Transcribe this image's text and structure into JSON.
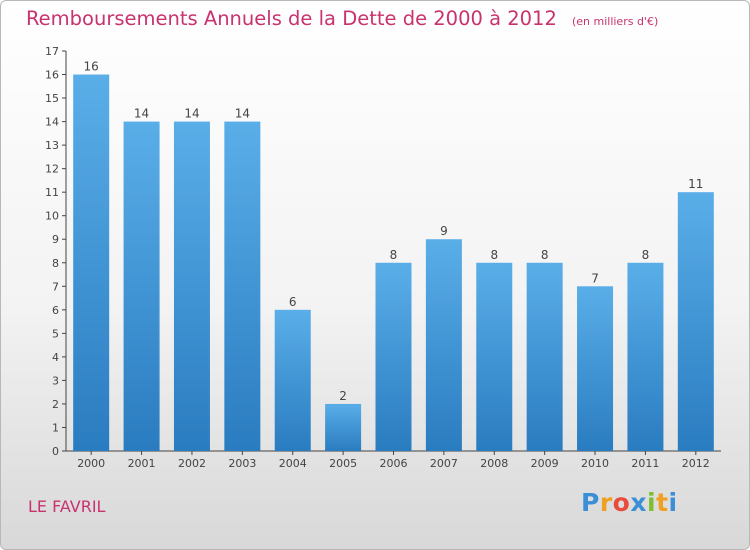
{
  "chart_data": {
    "type": "bar",
    "title": "Remboursements Annuels de la Dette de 2000 à 2012",
    "subtitle": "(en milliers d'€)",
    "categories": [
      "2000",
      "2001",
      "2002",
      "2003",
      "2004",
      "2005",
      "2006",
      "2007",
      "2008",
      "2009",
      "2010",
      "2011",
      "2012"
    ],
    "values": [
      16,
      14,
      14,
      14,
      6,
      2,
      8,
      9,
      8,
      8,
      7,
      8,
      11
    ],
    "ylim": [
      0,
      17
    ],
    "yticks": [
      0,
      1,
      2,
      3,
      4,
      5,
      6,
      7,
      8,
      9,
      10,
      11,
      12,
      13,
      14,
      15,
      16,
      17
    ],
    "grid": false,
    "data_labels": true,
    "bar_color_top": "#5aaee8",
    "bar_color_bottom": "#2a7cc0"
  },
  "commune": "LE FAVRIL",
  "brand": {
    "letters": [
      "P",
      "r",
      "o",
      "x",
      "i",
      "t",
      "i"
    ],
    "colors": [
      "#3b8fd6",
      "#f0a020",
      "#e84c3d",
      "#3b8fd6",
      "#7dbf2f",
      "#f0a020",
      "#3b8fd6"
    ]
  },
  "colors": {
    "accent": "#c8326e",
    "axis": "#444444"
  }
}
